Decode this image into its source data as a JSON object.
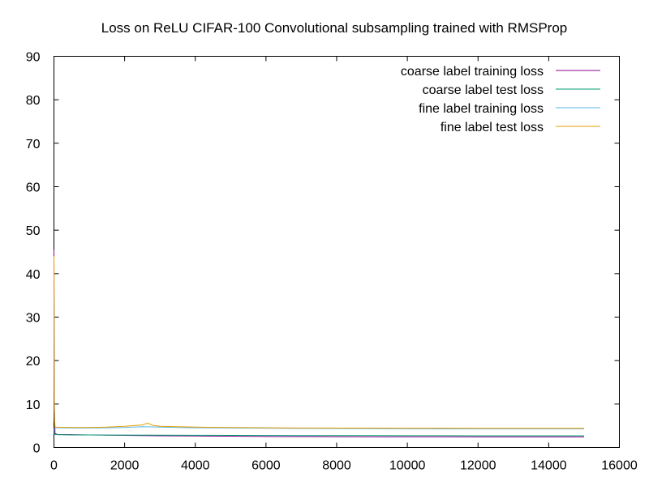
{
  "chart_data": {
    "type": "line",
    "title": "Loss on ReLU CIFAR-100 Convolutional subsampling trained with RMSProp",
    "xlabel": "",
    "ylabel": "",
    "xlim": [
      0,
      16000
    ],
    "ylim": [
      0,
      90
    ],
    "xticks": [
      0,
      2000,
      4000,
      6000,
      8000,
      10000,
      12000,
      14000,
      16000
    ],
    "yticks": [
      0,
      10,
      20,
      30,
      40,
      50,
      60,
      70,
      80,
      90
    ],
    "grid": false,
    "legend_position": "top-right",
    "series": [
      {
        "name": "coarse label training loss",
        "color": "#8b008b",
        "x": [
          0,
          10,
          30,
          100,
          500,
          1000,
          1500,
          2000,
          2500,
          3000,
          3500,
          4000,
          5000,
          6000,
          7000,
          8000,
          9000,
          10000,
          11000,
          12000,
          13000,
          14000,
          15000
        ],
        "y": [
          45.5,
          10.0,
          3.2,
          3.0,
          2.95,
          2.9,
          2.85,
          2.8,
          2.75,
          2.7,
          2.68,
          2.65,
          2.6,
          2.55,
          2.52,
          2.5,
          2.48,
          2.47,
          2.46,
          2.45,
          2.45,
          2.44,
          2.44
        ]
      },
      {
        "name": "coarse label test loss",
        "color": "#009e73",
        "x": [
          0,
          10,
          30,
          100,
          500,
          1000,
          2000,
          3000,
          4000,
          5000,
          6000,
          7000,
          8000,
          9000,
          10000,
          11000,
          12000,
          13000,
          14000,
          15000
        ],
        "y": [
          4.5,
          3.1,
          3.0,
          2.95,
          2.9,
          2.88,
          2.86,
          2.84,
          2.82,
          2.8,
          2.78,
          2.76,
          2.75,
          2.74,
          2.73,
          2.72,
          2.71,
          2.7,
          2.7,
          2.7
        ]
      },
      {
        "name": "fine label training loss",
        "color": "#56b4e9",
        "x": [
          0,
          10,
          30,
          100,
          500,
          1000,
          1500,
          2000,
          2500,
          3000,
          3500,
          4000,
          5000,
          6000,
          7000,
          8000,
          9000,
          10000,
          11000,
          12000,
          13000,
          14000,
          15000
        ],
        "y": [
          40.0,
          8.0,
          4.6,
          4.55,
          4.5,
          4.5,
          4.55,
          4.6,
          4.8,
          4.7,
          4.6,
          4.55,
          4.5,
          4.45,
          4.4,
          4.38,
          4.35,
          4.33,
          4.32,
          4.3,
          4.3,
          4.3,
          4.3
        ]
      },
      {
        "name": "fine label test loss",
        "color": "#e69f00",
        "x": [
          0,
          10,
          30,
          100,
          500,
          1000,
          1500,
          2000,
          2500,
          2650,
          2800,
          3000,
          3500,
          4000,
          5000,
          6000,
          7000,
          8000,
          9000,
          10000,
          11000,
          12000,
          13000,
          14000,
          15000
        ],
        "y": [
          44.0,
          7.0,
          4.7,
          4.65,
          4.6,
          4.6,
          4.7,
          4.9,
          5.2,
          5.6,
          5.1,
          4.9,
          4.8,
          4.7,
          4.6,
          4.55,
          4.5,
          4.48,
          4.46,
          4.45,
          4.44,
          4.43,
          4.43,
          4.42,
          4.42
        ]
      }
    ]
  }
}
